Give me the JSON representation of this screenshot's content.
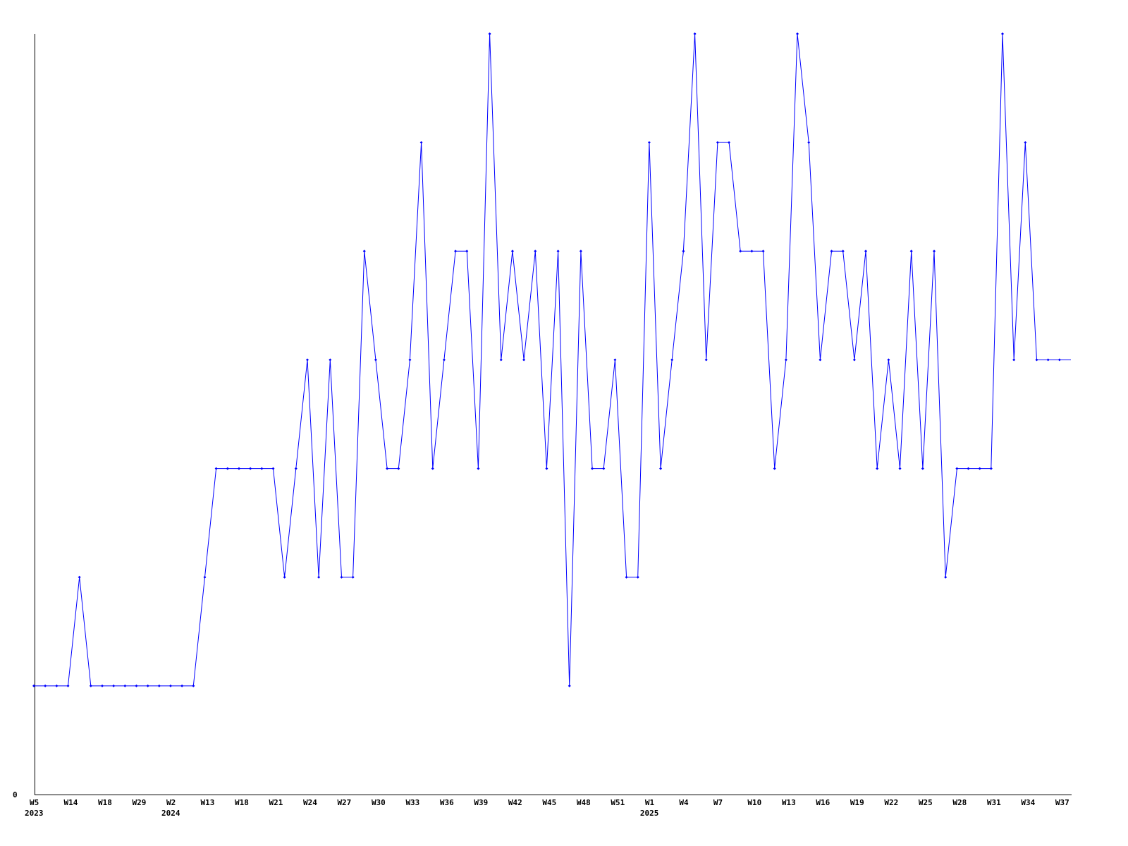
{
  "chart_data": {
    "type": "line",
    "title": "",
    "xlabel": "",
    "ylabel": "",
    "ylim": [
      0,
      7
    ],
    "y_tick_labels": [
      "0"
    ],
    "grid": false,
    "line_color": "#0000ff",
    "axis_color": "#000000",
    "x_tick_labels": [
      {
        "index": 0,
        "week": "W5",
        "year": "2023"
      },
      {
        "index": 3,
        "week": "W14"
      },
      {
        "index": 6,
        "week": "W18"
      },
      {
        "index": 9,
        "week": "W29"
      },
      {
        "index": 12,
        "week": "W2",
        "year": "2024"
      },
      {
        "index": 15,
        "week": "W13"
      },
      {
        "index": 18,
        "week": "W18"
      },
      {
        "index": 21,
        "week": "W21"
      },
      {
        "index": 24,
        "week": "W24"
      },
      {
        "index": 27,
        "week": "W27"
      },
      {
        "index": 30,
        "week": "W30"
      },
      {
        "index": 33,
        "week": "W33"
      },
      {
        "index": 36,
        "week": "W36"
      },
      {
        "index": 39,
        "week": "W39"
      },
      {
        "index": 42,
        "week": "W42"
      },
      {
        "index": 45,
        "week": "W45"
      },
      {
        "index": 48,
        "week": "W48"
      },
      {
        "index": 51,
        "week": "W51"
      },
      {
        "index": 54,
        "week": "W1",
        "year": "2025"
      },
      {
        "index": 57,
        "week": "W4"
      },
      {
        "index": 60,
        "week": "W7"
      },
      {
        "index": 63,
        "week": "W10"
      },
      {
        "index": 66,
        "week": "W13"
      },
      {
        "index": 69,
        "week": "W16"
      },
      {
        "index": 72,
        "week": "W19"
      },
      {
        "index": 75,
        "week": "W22"
      },
      {
        "index": 78,
        "week": "W25"
      },
      {
        "index": 81,
        "week": "W28"
      },
      {
        "index": 84,
        "week": "W31"
      },
      {
        "index": 87,
        "week": "W34"
      },
      {
        "index": 90,
        "week": "W37"
      }
    ],
    "values": [
      1,
      1,
      1,
      1,
      2,
      1,
      1,
      1,
      1,
      1,
      1,
      1,
      1,
      1,
      1,
      2,
      3,
      3,
      3,
      3,
      3,
      3,
      2,
      3,
      4,
      2,
      4,
      2,
      2,
      5,
      4,
      3,
      3,
      4,
      6,
      3,
      4,
      5,
      5,
      3,
      7,
      4,
      5,
      4,
      5,
      3,
      5,
      1,
      5,
      3,
      3,
      4,
      2,
      2,
      6,
      3,
      4,
      5,
      7,
      4,
      6,
      6,
      5,
      5,
      5,
      3,
      4,
      7,
      6,
      4,
      5,
      5,
      4,
      5,
      3,
      4,
      3,
      5,
      3,
      5,
      2,
      3,
      3,
      3,
      3,
      7,
      4,
      6,
      4,
      4,
      4,
      4
    ]
  }
}
